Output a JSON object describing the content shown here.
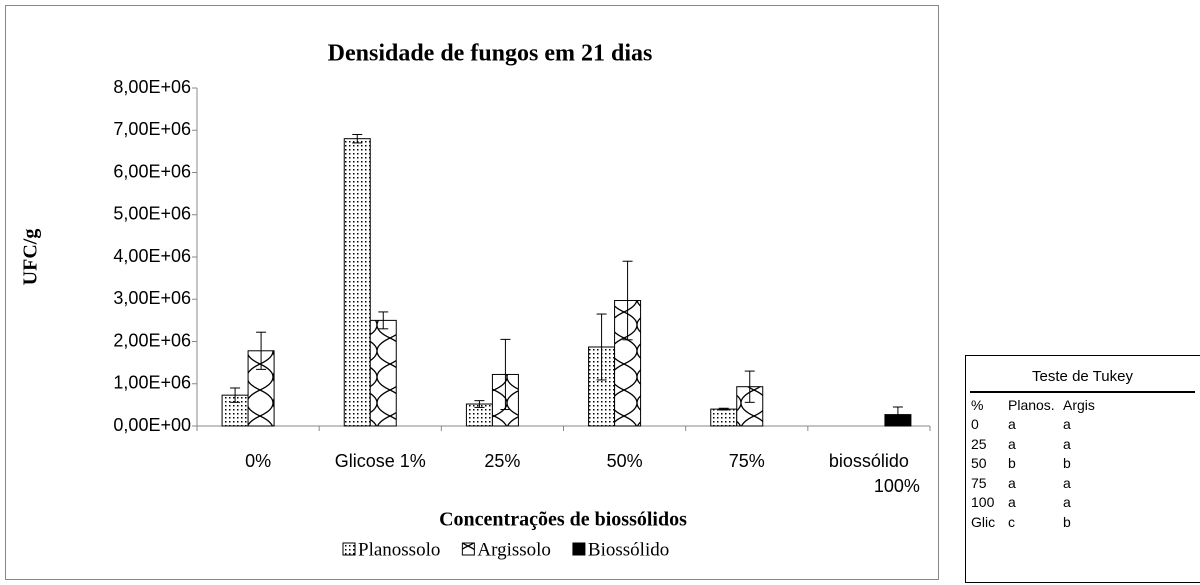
{
  "chart_data": {
    "type": "bar",
    "title": "Densidade de fungos em 21 dias",
    "x_label": "Concentrações de biossólidos",
    "y_label": "UFC/g",
    "categories": [
      "0%",
      "Glicose 1%",
      "25%",
      "50%",
      "75%",
      "biossólido 100%"
    ],
    "series": [
      {
        "name": "Planossolo",
        "color": "#000000",
        "pattern": "dots",
        "values": [
          730000,
          6800000,
          520000,
          1870000,
          400000,
          null
        ],
        "errors": [
          170000,
          100000,
          80000,
          780000,
          20000,
          null
        ]
      },
      {
        "name": "Argissolo",
        "color": "#000000",
        "pattern": "waves",
        "values": [
          1780000,
          2500000,
          1220000,
          2970000,
          930000,
          null
        ],
        "errors": [
          440000,
          200000,
          830000,
          930000,
          370000,
          null
        ]
      },
      {
        "name": "Biossólido",
        "color": "#000000",
        "pattern": "solid",
        "values": [
          null,
          null,
          null,
          null,
          null,
          270000
        ],
        "errors": [
          null,
          null,
          null,
          null,
          null,
          180000
        ]
      }
    ],
    "ylim": [
      0,
      8000000
    ],
    "yticks": [
      {
        "value": 0,
        "label": "0,00E+00"
      },
      {
        "value": 1000000,
        "label": "1,00E+06"
      },
      {
        "value": 2000000,
        "label": "2,00E+06"
      },
      {
        "value": 3000000,
        "label": "3,00E+06"
      },
      {
        "value": 4000000,
        "label": "4,00E+06"
      },
      {
        "value": 5000000,
        "label": "5,00E+06"
      },
      {
        "value": 6000000,
        "label": "6,00E+06"
      },
      {
        "value": 7000000,
        "label": "7,00E+06"
      },
      {
        "value": 8000000,
        "label": "8,00E+06"
      }
    ],
    "legend": "bottom"
  },
  "table": {
    "title": "Teste de Tukey",
    "header": [
      "%",
      "Planos.",
      "Argis"
    ],
    "rows": [
      [
        "0",
        "a",
        "a"
      ],
      [
        "25",
        "a",
        "a"
      ],
      [
        "50",
        "b",
        "b"
      ],
      [
        "75",
        "a",
        "a"
      ],
      [
        "100",
        "a",
        "a"
      ],
      [
        "Glic",
        "c",
        "b"
      ]
    ]
  }
}
